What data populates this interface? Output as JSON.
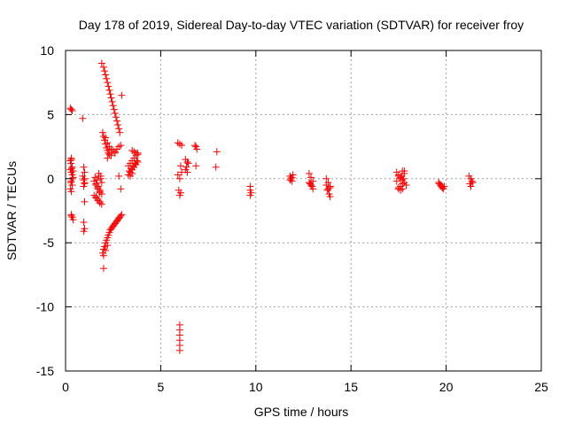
{
  "chart_data": {
    "type": "scatter",
    "title": "Day 178 of 2019, Sidereal Day-to-day VTEC variation (SDTVAR) for receiver froy",
    "xlabel": "GPS time / hours",
    "ylabel": "SDTVAR / TECUs",
    "xlim": [
      0,
      25
    ],
    "ylim": [
      -15,
      10
    ],
    "xticks": [
      0,
      5,
      10,
      15,
      20,
      25
    ],
    "yticks": [
      -15,
      -10,
      -5,
      0,
      5,
      10
    ],
    "grid": true,
    "marker": "plus",
    "color": "#ff0000",
    "series": [
      {
        "name": "SDTVAR",
        "x": [
          0.25,
          0.3,
          0.35,
          0.3,
          0.25,
          0.28,
          0.32,
          0.3,
          0.35,
          0.4,
          0.3,
          0.35,
          0.25,
          0.3,
          0.4,
          0.35,
          0.28,
          0.3,
          0.35,
          0.4,
          0.3,
          0.35,
          0.25,
          0.3,
          0.9,
          0.95,
          1.0,
          0.9,
          0.95,
          1.0,
          0.95,
          1.0,
          0.95,
          1.0,
          0.95,
          1.0,
          1.0,
          1.5,
          1.6,
          1.7,
          1.8,
          1.5,
          1.6,
          1.7,
          1.8,
          1.55,
          1.65,
          1.75,
          1.6,
          1.7,
          1.8,
          1.9,
          1.85,
          1.9,
          1.6,
          1.7,
          1.8,
          1.9,
          1.75,
          1.85,
          1.7,
          1.8,
          1.9,
          2.0,
          2.05,
          2.1,
          2.15,
          2.2,
          2.25,
          2.3,
          2.35,
          2.4,
          2.45,
          2.5,
          2.55,
          2.6,
          2.65,
          2.7,
          2.75,
          2.8,
          2.85,
          1.95,
          2.0,
          2.05,
          2.1,
          2.15,
          2.2,
          2.25,
          2.3,
          2.1,
          2.2,
          2.3,
          2.4,
          2.5,
          2.6,
          2.7,
          2.8,
          2.9,
          2.2,
          2.4,
          2.6,
          1.95,
          2.0,
          2.05,
          2.1,
          2.15,
          2.2,
          2.25,
          2.3,
          2.35,
          2.4,
          2.45,
          2.5,
          2.55,
          2.6,
          2.65,
          2.7,
          2.75,
          2.8,
          2.85,
          2.9,
          2.95,
          2.0,
          2.1,
          2.2,
          2.0,
          2.95,
          2.9,
          2.8,
          3.3,
          3.4,
          3.5,
          3.6,
          3.7,
          3.8,
          3.3,
          3.4,
          3.5,
          3.6,
          3.7,
          3.8,
          3.35,
          3.45,
          3.55,
          3.65,
          3.75,
          3.5,
          3.6,
          3.7,
          3.8,
          3.4,
          3.5,
          5.9,
          6.0,
          6.1,
          5.95,
          6.05,
          6.0,
          6.1,
          5.9,
          6.0,
          6.05,
          6.0,
          6.0,
          6.0,
          6.0,
          6.0,
          6.0,
          6.3,
          6.4,
          6.45,
          6.35,
          6.3,
          6.4,
          6.8,
          6.85,
          6.9,
          6.85,
          7.95,
          7.9,
          9.7,
          9.7,
          9.75,
          9.7,
          11.8,
          11.85,
          11.9,
          11.95,
          11.8,
          11.9,
          12.8,
          12.9,
          13.0,
          12.85,
          12.95,
          13.0,
          12.9,
          12.8,
          13.7,
          13.8,
          13.9,
          13.75,
          13.85,
          13.9,
          13.8,
          13.7,
          13.9,
          17.4,
          17.5,
          17.6,
          17.7,
          17.8,
          17.9,
          17.5,
          17.6,
          17.7,
          17.8,
          17.4,
          17.5,
          17.6,
          17.7,
          17.8,
          17.6,
          17.7,
          17.5,
          17.65,
          17.75,
          19.6,
          19.7,
          19.8,
          19.9,
          19.65,
          19.75,
          19.85,
          19.7,
          19.8,
          21.2,
          21.3,
          21.35,
          21.25,
          21.3,
          21.4
        ],
        "y": [
          5.5,
          5.4,
          5.3,
          1.5,
          1.4,
          1.2,
          0.8,
          0.5,
          0.3,
          0.1,
          -0.2,
          -0.5,
          -0.8,
          -1.0,
          0.6,
          0.0,
          -0.3,
          -2.8,
          -3.0,
          -3.2,
          -2.9,
          0.9,
          0.7,
          1.6,
          4.7,
          0.9,
          0.5,
          0.2,
          -0.1,
          -0.4,
          -0.6,
          -1.8,
          -3.4,
          -3.9,
          -4.1,
          0.0,
          -0.3,
          -0.2,
          -0.5,
          -0.8,
          -1.1,
          -1.3,
          -1.5,
          -1.7,
          -1.9,
          0.1,
          -0.1,
          0.2,
          -0.4,
          -0.6,
          -0.9,
          -0.3,
          0.0,
          -1.2,
          -1.4,
          -1.6,
          -1.8,
          -2.0,
          0.4,
          0.2,
          -0.7,
          -1.0,
          9.0,
          8.7,
          8.4,
          8.1,
          7.8,
          7.5,
          7.2,
          6.9,
          6.6,
          6.3,
          6.0,
          5.7,
          5.4,
          5.1,
          4.8,
          4.5,
          4.2,
          3.9,
          3.6,
          3.6,
          3.3,
          3.0,
          2.7,
          2.4,
          2.2,
          2.0,
          1.9,
          3.2,
          2.8,
          2.5,
          2.3,
          2.2,
          2.1,
          2.3,
          2.5,
          2.6,
          1.6,
          1.8,
          2.0,
          -5.8,
          -5.5,
          -5.3,
          -5.0,
          -4.8,
          -4.6,
          -4.4,
          -4.2,
          -4.0,
          -3.9,
          -3.8,
          -3.7,
          -3.6,
          -3.5,
          -3.4,
          -3.3,
          -3.2,
          -3.1,
          -3.0,
          -2.9,
          -2.8,
          -6.0,
          -5.6,
          -5.2,
          -7.0,
          6.5,
          -0.8,
          0.2,
          0.3,
          0.5,
          0.7,
          0.9,
          1.1,
          1.3,
          1.0,
          1.2,
          1.4,
          1.6,
          1.8,
          2.0,
          0.6,
          0.8,
          1.0,
          1.2,
          1.4,
          2.2,
          2.1,
          2.0,
          1.9,
          0.2,
          0.4,
          2.8,
          2.7,
          2.6,
          -0.9,
          -1.1,
          -1.3,
          0.5,
          0.3,
          0.0,
          1.0,
          -11.4,
          -11.8,
          -12.2,
          -12.6,
          -13.0,
          -13.4,
          1.5,
          1.3,
          1.2,
          0.9,
          0.7,
          0.5,
          2.6,
          2.5,
          2.3,
          1.0,
          2.1,
          0.9,
          -0.6,
          -0.9,
          -1.1,
          -1.3,
          0.2,
          0.0,
          -0.2,
          0.3,
          -0.1,
          0.1,
          0.4,
          0.1,
          -0.2,
          -0.4,
          -0.6,
          -0.8,
          -0.5,
          -0.3,
          0.0,
          -0.3,
          -0.6,
          -0.9,
          -1.2,
          -1.4,
          -0.8,
          -0.5,
          -0.7,
          0.5,
          0.3,
          0.1,
          -0.1,
          -0.3,
          -0.5,
          -0.7,
          -0.9,
          0.6,
          0.4,
          -0.2,
          0.2,
          0.0,
          -0.4,
          0.6,
          -0.6,
          -0.8,
          -0.8,
          0.2,
          0.0,
          -0.3,
          -0.5,
          -0.7,
          -0.6,
          -0.4,
          -0.6,
          -0.8,
          -0.5,
          -0.7,
          0.2,
          0.0,
          -0.2,
          -0.4,
          -0.6,
          -0.3
        ]
      }
    ]
  }
}
